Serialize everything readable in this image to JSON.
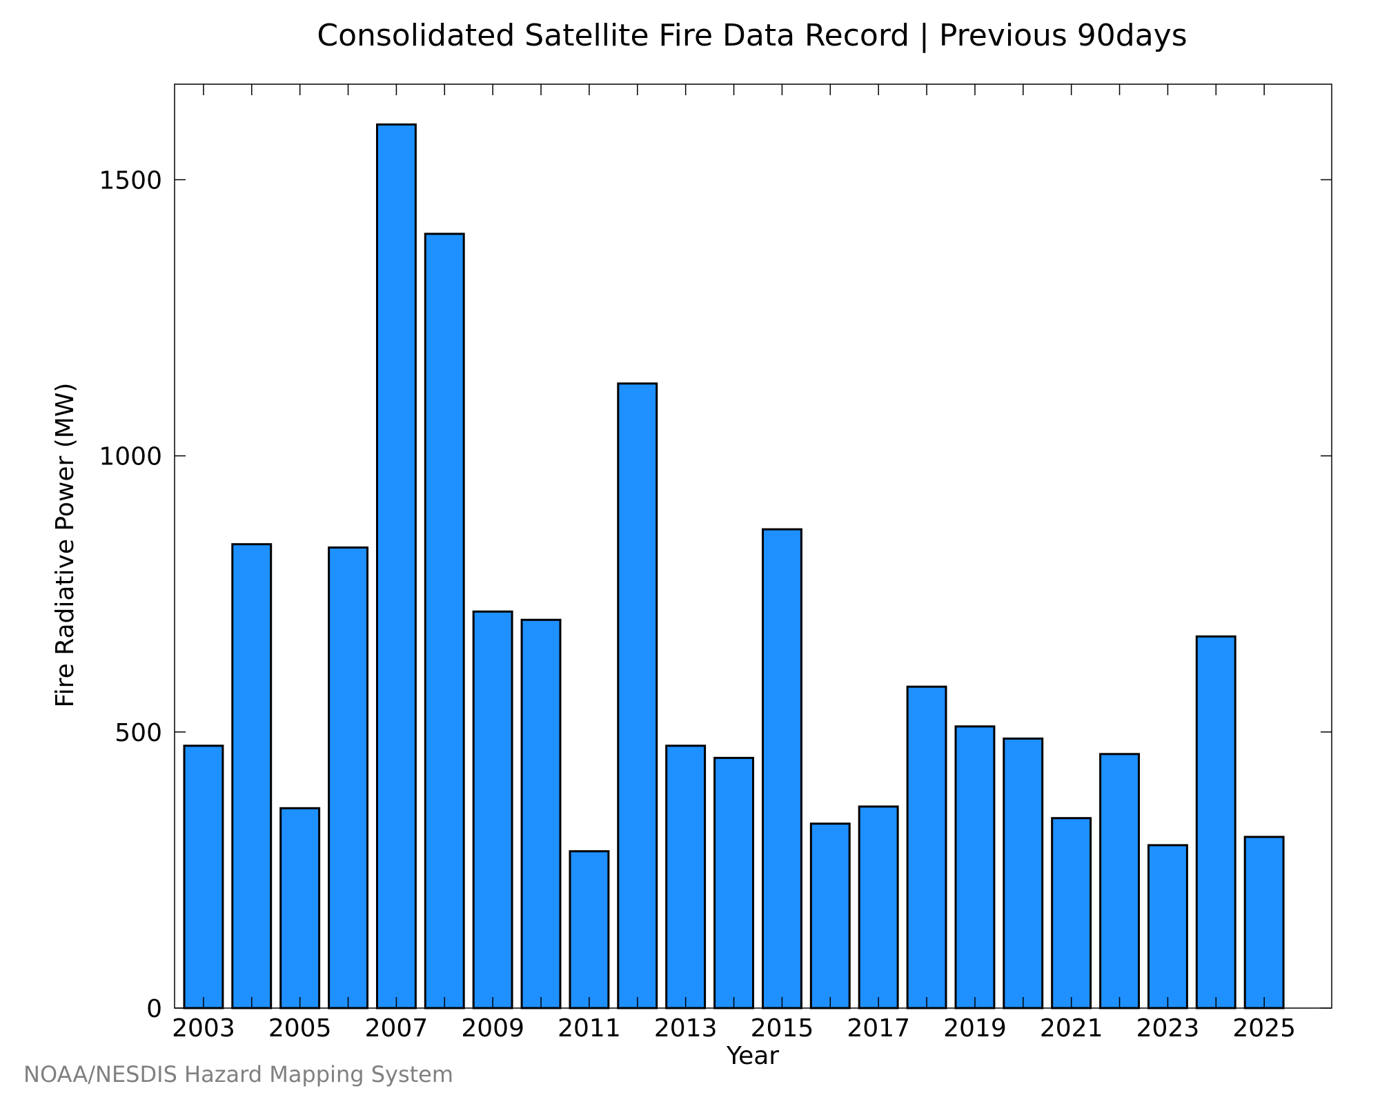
{
  "chart_data": {
    "type": "bar",
    "title": "Consolidated Satellite Fire Data Record | Previous 90days",
    "xlabel": "Year",
    "ylabel": "Fire Radiative Power (MW)",
    "categories": [
      "2003",
      "2004",
      "2005",
      "2006",
      "2007",
      "2008",
      "2009",
      "2010",
      "2011",
      "2012",
      "2013",
      "2014",
      "2015",
      "2016",
      "2017",
      "2018",
      "2019",
      "2020",
      "2021",
      "2022",
      "2023",
      "2024",
      "2025"
    ],
    "values": [
      475,
      840,
      362,
      834,
      1600,
      1402,
      718,
      703,
      284,
      1131,
      475,
      453,
      867,
      334,
      365,
      582,
      510,
      488,
      344,
      460,
      295,
      673,
      310
    ],
    "x_tick_labels": [
      "2003",
      "2005",
      "2007",
      "2009",
      "2011",
      "2013",
      "2015",
      "2017",
      "2019",
      "2021",
      "2023",
      "2025"
    ],
    "y_ticks": [
      0,
      500,
      1000,
      1500
    ],
    "ylim": [
      0,
      1673
    ],
    "xlim": [
      2002.4,
      2026.4
    ],
    "grid": false,
    "legend": "none",
    "bar_color": "#1e90ff",
    "bar_edge_color": "#000000"
  },
  "credit": "NOAA/NESDIS Hazard Mapping System"
}
